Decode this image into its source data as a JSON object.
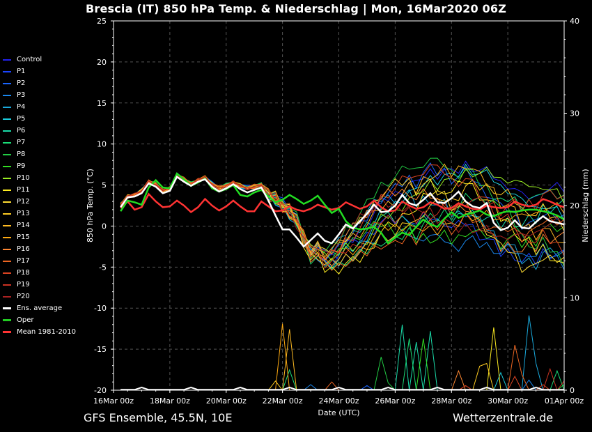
{
  "title": "Brescia  (IT)  850 hPa Temp. & Niederschlag | Mon, 16Mar2020 06Z",
  "footer": {
    "left": "GFS Ensemble, 45.5N, 10E",
    "right": "Wetterzentrale.de"
  },
  "legend": [
    {
      "label": "Control",
      "color": "#2222ee"
    },
    {
      "label": "P1",
      "color": "#1a44ff"
    },
    {
      "label": "P2",
      "color": "#1a66ff"
    },
    {
      "label": "P3",
      "color": "#1a88ee"
    },
    {
      "label": "P4",
      "color": "#1aaadd"
    },
    {
      "label": "P5",
      "color": "#1accdd"
    },
    {
      "label": "P6",
      "color": "#1addaa"
    },
    {
      "label": "P7",
      "color": "#1add77"
    },
    {
      "label": "P8",
      "color": "#22cc44"
    },
    {
      "label": "P9",
      "color": "#33dd22"
    },
    {
      "label": "P10",
      "color": "#99ee22"
    },
    {
      "label": "P11",
      "color": "#ffee22"
    },
    {
      "label": "P12",
      "color": "#ffdd33"
    },
    {
      "label": "P13",
      "color": "#ffcc22"
    },
    {
      "label": "P14",
      "color": "#ffbb22"
    },
    {
      "label": "P15",
      "color": "#ffaa11"
    },
    {
      "label": "P16",
      "color": "#ff8833"
    },
    {
      "label": "P17",
      "color": "#ee6622"
    },
    {
      "label": "P18",
      "color": "#dd4422"
    },
    {
      "label": "P19",
      "color": "#cc3322"
    },
    {
      "label": "P20",
      "color": "#aa2222"
    },
    {
      "label": "Ens. average",
      "color": "#ffffff"
    },
    {
      "label": "Oper",
      "color": "#22cc22"
    },
    {
      "label": "Mean 1981-2010",
      "color": "#ff3333"
    }
  ],
  "chart_data": {
    "type": "line",
    "title": "Brescia  (IT)  850 hPa Temp. & Niederschlag | Mon, 16Mar2020 06Z",
    "xlabel": "Date (UTC)",
    "ylabel": "850 hPa Temp. (°C)",
    "y2label": "Niederschlag (mm)",
    "ylim": [
      -20,
      25
    ],
    "y2lim": [
      0,
      40
    ],
    "yticks": [
      "25",
      "20",
      "15",
      "10",
      "5",
      "0",
      "-5",
      "-10",
      "-15",
      "-20"
    ],
    "y2ticks": [
      "40",
      "30",
      "20",
      "10",
      "0"
    ],
    "xticks": [
      "16Mar 00z",
      "18Mar 00z",
      "20Mar 00z",
      "22Mar 00z",
      "24Mar 00z",
      "26Mar 00z",
      "28Mar 00z",
      "30Mar 00z",
      "01Apr 00z"
    ],
    "x_range_hours": [
      0,
      384
    ],
    "x_start_hour": 6,
    "x_step_hours": 6,
    "temp_base": [
      2.6,
      3.6,
      3.8,
      4.3,
      5.4,
      5.1,
      4.3,
      4.6,
      6.2,
      5.7,
      5.1,
      5.6,
      5.9,
      5.1,
      4.6,
      4.9,
      5.3,
      4.9,
      4.6,
      4.8,
      5.0,
      3.8,
      3.4,
      2.4,
      1.8,
      0.6,
      -1.4,
      -3.4,
      -3.0,
      -4.2,
      -3.9,
      -3.4,
      -2.4,
      -1.9,
      -1.2,
      -0.4,
      0.6,
      1.6,
      1.9,
      2.1,
      2.6,
      3.1,
      2.4,
      3.4,
      3.7,
      3.3,
      3.6,
      2.8,
      3.1,
      3.7,
      3.3,
      2.6,
      2.2,
      1.6,
      0.6,
      0.8,
      0.3,
      -0.7,
      -0.4,
      -0.9,
      0.2,
      -0.2,
      -0.4,
      -0.8
    ],
    "series": [
      {
        "name": "Ens. average",
        "values": [
          2.3,
          3.5,
          3.6,
          4.0,
          5.2,
          4.8,
          4.0,
          4.3,
          6.0,
          5.4,
          4.9,
          5.4,
          5.7,
          4.8,
          4.2,
          4.6,
          5.1,
          4.5,
          4.1,
          4.4,
          4.7,
          3.1,
          1.3,
          -0.4,
          -0.4,
          -1.4,
          -2.5,
          -1.7,
          -0.9,
          -1.8,
          -2.1,
          -1.0,
          0.2,
          -0.3,
          0.6,
          1.5,
          2.6,
          1.7,
          1.8,
          2.5,
          3.8,
          2.8,
          2.5,
          3.2,
          4.0,
          2.9,
          2.8,
          3.4,
          4.2,
          3.0,
          2.4,
          2.2,
          2.8,
          0.4,
          -0.5,
          -0.2,
          0.7,
          -0.2,
          -0.3,
          0.5,
          1.2,
          0.6,
          0.4,
          0.2
        ]
      },
      {
        "name": "Oper",
        "values": [
          1.8,
          3.1,
          2.9,
          2.6,
          4.7,
          5.6,
          4.7,
          4.6,
          6.4,
          5.7,
          4.9,
          5.3,
          5.8,
          4.6,
          4.2,
          4.5,
          5.0,
          3.8,
          3.6,
          4.1,
          4.4,
          3.6,
          2.9,
          3.2,
          3.8,
          3.3,
          2.7,
          3.1,
          3.7,
          2.6,
          1.6,
          2.1,
          0.6,
          -0.2,
          -0.4,
          -0.3,
          -0.1,
          -0.8,
          -2.1,
          -1.4,
          -0.8,
          -1.1,
          -0.1,
          0.8,
          0.2,
          -0.1,
          0.9,
          1.7,
          1.0,
          1.4,
          1.6,
          1.9,
          1.4,
          1.2,
          1.6,
          1.8,
          1.7,
          1.9,
          2.0,
          2.0,
          1.8,
          1.6,
          1.3,
          0.8
        ]
      },
      {
        "name": "Mean 1981-2010",
        "values": [
          2.2,
          3.0,
          2.0,
          2.3,
          3.9,
          3.0,
          2.3,
          2.4,
          3.1,
          2.5,
          1.7,
          2.3,
          3.3,
          2.5,
          1.9,
          2.4,
          3.1,
          2.4,
          1.8,
          1.8,
          3.0,
          2.4,
          1.8,
          1.9,
          2.4,
          2.0,
          1.8,
          2.1,
          2.6,
          2.3,
          2.0,
          2.2,
          2.9,
          2.5,
          2.1,
          2.4,
          3.1,
          2.3,
          1.8,
          1.9,
          3.0,
          2.5,
          2.1,
          2.3,
          2.9,
          2.6,
          2.1,
          2.2,
          2.8,
          2.4,
          2.1,
          2.0,
          2.5,
          2.3,
          2.2,
          2.3,
          3.0,
          2.6,
          2.4,
          2.6,
          3.3,
          3.0,
          2.6,
          2.3
        ]
      }
    ],
    "ensemble_offsets": [
      [
        0.0,
        0.2,
        -0.4,
        0.5,
        1.8,
        2.9,
        3.8,
        4.6,
        4.0,
        5.3
      ],
      [
        0.1,
        0.5,
        0.3,
        -0.6,
        -1.5,
        -2.6,
        -3.2,
        -4.0,
        -3.6,
        -2.8
      ],
      [
        -0.1,
        -0.3,
        0.7,
        1.2,
        2.4,
        3.3,
        2.9,
        1.6,
        0.8,
        2.2
      ],
      [
        0.1,
        0.2,
        -0.8,
        -1.9,
        -3.4,
        -4.8,
        -5.6,
        -4.1,
        -2.6,
        -3.8
      ],
      [
        0.0,
        -0.4,
        0.9,
        2.3,
        1.3,
        -0.4,
        -1.8,
        -2.6,
        -3.9,
        -2.6
      ],
      [
        -0.1,
        0.3,
        -0.5,
        -1.0,
        0.6,
        2.1,
        3.4,
        4.2,
        3.1,
        1.8
      ],
      [
        0.1,
        0.1,
        0.4,
        0.8,
        -1.4,
        -3.1,
        -2.1,
        -0.8,
        1.2,
        3.4
      ],
      [
        0.0,
        -0.2,
        -0.9,
        -2.4,
        -4.1,
        -2.9,
        -0.6,
        1.9,
        3.8,
        4.6
      ],
      [
        0.1,
        0.4,
        1.1,
        2.8,
        3.9,
        4.6,
        3.2,
        2.1,
        -1.6,
        -3.4
      ],
      [
        -0.1,
        -0.1,
        -0.2,
        0.3,
        -2.6,
        -5.1,
        -4.4,
        -2.9,
        -1.1,
        0.4
      ],
      [
        0.0,
        0.3,
        0.6,
        -1.3,
        -0.4,
        1.5,
        2.8,
        4.9,
        5.6,
        3.9
      ],
      [
        0.1,
        -0.3,
        -1.2,
        -3.0,
        -1.8,
        0.3,
        1.9,
        0.6,
        -1.8,
        -4.4
      ],
      [
        -0.1,
        0.2,
        0.8,
        1.6,
        3.0,
        1.4,
        -1.1,
        -3.2,
        -4.6,
        -3.0
      ],
      [
        0.0,
        0.1,
        -0.6,
        -2.1,
        -3.3,
        -1.2,
        1.0,
        3.3,
        2.4,
        0.9
      ],
      [
        0.1,
        -0.2,
        1.3,
        0.4,
        0.9,
        2.6,
        4.1,
        2.6,
        0.2,
        -1.6
      ],
      [
        0.0,
        0.4,
        -0.1,
        -1.7,
        -2.2,
        -4.0,
        -2.6,
        -0.3,
        2.1,
        2.7
      ],
      [
        -0.1,
        -0.4,
        0.5,
        2.0,
        1.9,
        0.1,
        -1.4,
        -3.5,
        -2.1,
        -0.6
      ],
      [
        0.1,
        0.3,
        -1.0,
        -2.6,
        -4.6,
        -3.6,
        -2.9,
        -1.6,
        -0.2,
        1.6
      ],
      [
        0.0,
        -0.1,
        0.2,
        1.0,
        2.6,
        3.8,
        2.2,
        0.4,
        -0.9,
        -2.1
      ],
      [
        -0.1,
        0.2,
        -0.3,
        -0.8,
        -1.0,
        -2.2,
        -0.6,
        1.1,
        3.4,
        4.2
      ],
      [
        0.1,
        -0.3,
        1.0,
        2.5,
        0.2,
        -1.8,
        -3.8,
        -2.4,
        -0.4,
        1.1
      ]
    ],
    "precip_spikes": [
      {
        "member": 13,
        "hour": 138,
        "mm": 1.0
      },
      {
        "member": 15,
        "hour": 144,
        "mm": 7.2
      },
      {
        "member": 14,
        "hour": 150,
        "mm": 6.6
      },
      {
        "member": 7,
        "hour": 150,
        "mm": 2.2
      },
      {
        "member": 3,
        "hour": 168,
        "mm": 0.6
      },
      {
        "member": 17,
        "hour": 186,
        "mm": 0.9
      },
      {
        "member": 2,
        "hour": 216,
        "mm": 0.5
      },
      {
        "member": 8,
        "hour": 228,
        "mm": 3.6
      },
      {
        "member": 8,
        "hour": 234,
        "mm": 0.8
      },
      {
        "member": 6,
        "hour": 246,
        "mm": 7.1
      },
      {
        "member": 7,
        "hour": 252,
        "mm": 5.6
      },
      {
        "member": 6,
        "hour": 258,
        "mm": 5.2
      },
      {
        "member": 9,
        "hour": 264,
        "mm": 5.6
      },
      {
        "member": 6,
        "hour": 270,
        "mm": 6.4
      },
      {
        "member": 16,
        "hour": 294,
        "mm": 2.1
      },
      {
        "member": 18,
        "hour": 300,
        "mm": 0.5
      },
      {
        "member": 13,
        "hour": 312,
        "mm": 2.6
      },
      {
        "member": 13,
        "hour": 318,
        "mm": 2.9
      },
      {
        "member": 11,
        "hour": 324,
        "mm": 6.8
      },
      {
        "member": 5,
        "hour": 330,
        "mm": 1.9
      },
      {
        "member": 18,
        "hour": 342,
        "mm": 1.5
      },
      {
        "member": 17,
        "hour": 342,
        "mm": 4.9
      },
      {
        "member": 17,
        "hour": 348,
        "mm": 1.7
      },
      {
        "member": 4,
        "hour": 354,
        "mm": 8.1
      },
      {
        "member": 3,
        "hour": 354,
        "mm": 1.1
      },
      {
        "member": 4,
        "hour": 360,
        "mm": 2.9
      },
      {
        "member": 18,
        "hour": 366,
        "mm": 0.6
      },
      {
        "member": 19,
        "hour": 372,
        "mm": 2.3
      },
      {
        "member": 7,
        "hour": 378,
        "mm": 2.1
      },
      {
        "member": 19,
        "hour": 384,
        "mm": 1.0
      },
      {
        "member": 8,
        "hour": 384,
        "mm": 0.6
      }
    ]
  }
}
